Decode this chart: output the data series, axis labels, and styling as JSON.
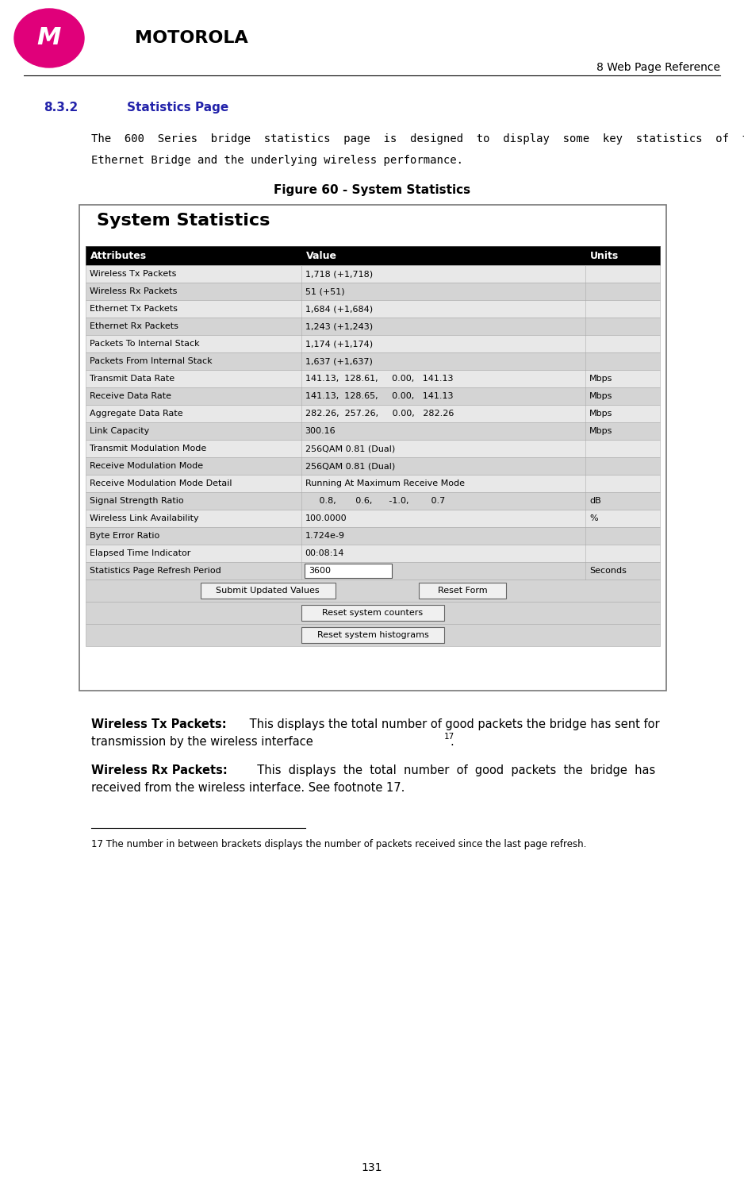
{
  "page_header_right": "8 Web Page Reference",
  "section_num": "8.3.2",
  "section_title": "Statistics Page",
  "section_color": "#2222AA",
  "intro_text_line1": "The  600  Series  bridge  statistics  page  is  designed  to  display  some  key  statistics  of  the",
  "intro_text_line2": "Ethernet Bridge and the underlying wireless performance.",
  "figure_caption": "Figure 60 - System Statistics",
  "table_title": "System Statistics",
  "header_row": [
    "Attributes",
    "Value",
    "Units"
  ],
  "table_rows": [
    [
      "Wireless Tx Packets",
      "1,718 (+1,718)",
      ""
    ],
    [
      "Wireless Rx Packets",
      "51 (+51)",
      ""
    ],
    [
      "Ethernet Tx Packets",
      "1,684 (+1,684)",
      ""
    ],
    [
      "Ethernet Rx Packets",
      "1,243 (+1,243)",
      ""
    ],
    [
      "Packets To Internal Stack",
      "1,174 (+1,174)",
      ""
    ],
    [
      "Packets From Internal Stack",
      "1,637 (+1,637)",
      ""
    ],
    [
      "Transmit Data Rate",
      "141.13,  128.61,     0.00,   141.13",
      "Mbps"
    ],
    [
      "Receive Data Rate",
      "141.13,  128.65,     0.00,   141.13",
      "Mbps"
    ],
    [
      "Aggregate Data Rate",
      "282.26,  257.26,     0.00,   282.26",
      "Mbps"
    ],
    [
      "Link Capacity",
      "300.16",
      "Mbps"
    ],
    [
      "Transmit Modulation Mode",
      "256QAM 0.81 (Dual)",
      ""
    ],
    [
      "Receive Modulation Mode",
      "256QAM 0.81 (Dual)",
      ""
    ],
    [
      "Receive Modulation Mode Detail",
      "Running At Maximum Receive Mode",
      ""
    ],
    [
      "Signal Strength Ratio",
      "     0.8,       0.6,      -1.0,        0.7",
      "dB"
    ],
    [
      "Wireless Link Availability",
      "100.0000",
      "%"
    ],
    [
      "Byte Error Ratio",
      "1.724e-9",
      ""
    ],
    [
      "Elapsed Time Indicator",
      "00:08:14",
      ""
    ],
    [
      "Statistics Page Refresh Period",
      "3600",
      "Seconds"
    ]
  ],
  "body_text_1_bold": "Wireless Tx Packets:",
  "body_text_1_normal": " This displays the total number of good packets the bridge has sent for",
  "body_text_1_line2": "transmission by the wireless interface",
  "body_text_1_sup": "17",
  "body_text_1_end": ".",
  "body_text_2_bold": "Wireless Rx Packets:",
  "body_text_2_normal": "  This  displays  the  total  number  of  good  packets  the  bridge  has",
  "body_text_2_line2": "received from the wireless interface. See footnote 17.",
  "footnote": "17 The number in between brackets displays the number of packets received since the last page refresh.",
  "page_number": "131",
  "bg_color": "#ffffff",
  "table_header_bg": "#000000",
  "table_header_fg": "#ffffff",
  "table_row_odd": "#d4d4d4",
  "table_row_even": "#e8e8e8",
  "table_border": "#555555"
}
